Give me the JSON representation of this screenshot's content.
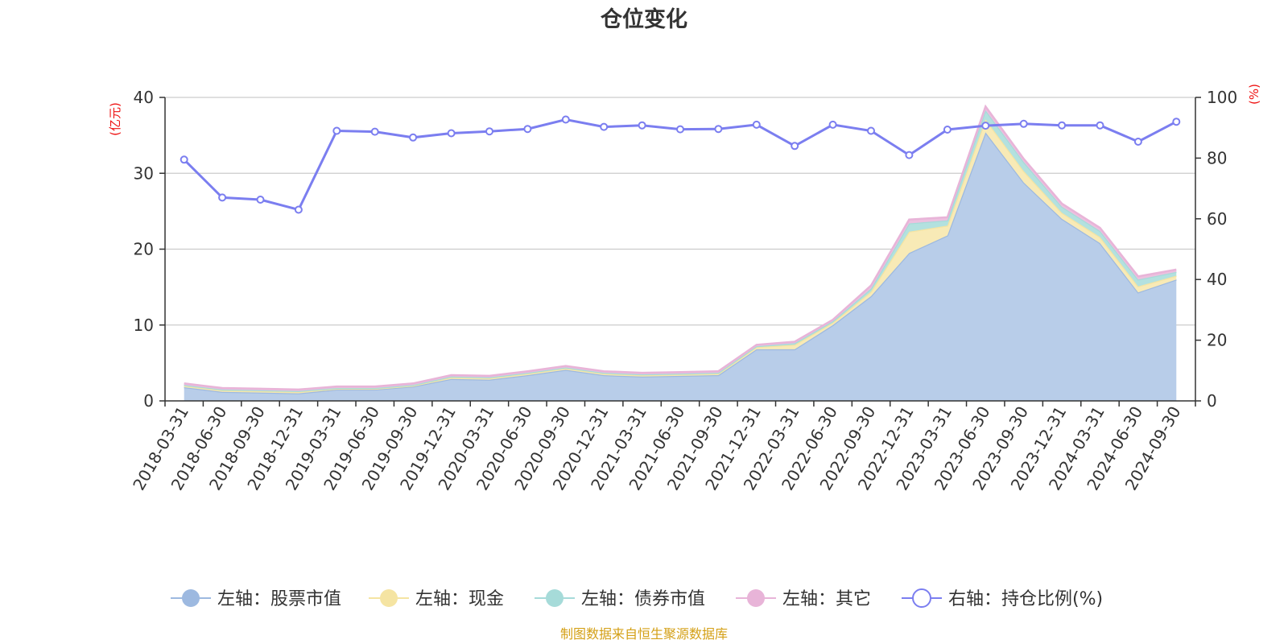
{
  "chart_data": {
    "type": "area",
    "title": "仓位变化",
    "left_unit": "(亿元)",
    "right_unit": "(%)",
    "source": "制图数据来自恒生聚源数据库",
    "categories": [
      "2018-03-31",
      "2018-06-30",
      "2018-09-30",
      "2018-12-31",
      "2019-03-31",
      "2019-06-30",
      "2019-09-30",
      "2019-12-31",
      "2020-03-31",
      "2020-06-30",
      "2020-09-30",
      "2020-12-31",
      "2021-03-31",
      "2021-06-30",
      "2021-09-30",
      "2021-12-31",
      "2022-03-31",
      "2022-06-30",
      "2022-09-30",
      "2022-12-31",
      "2023-03-31",
      "2023-06-30",
      "2023-09-30",
      "2023-12-31",
      "2024-03-31",
      "2024-06-30",
      "2024-09-30"
    ],
    "left_axis": {
      "min": 0,
      "max": 40,
      "ticks": [
        0,
        10,
        20,
        30,
        40
      ]
    },
    "right_axis": {
      "min": 0,
      "max": 100,
      "ticks": [
        0,
        20,
        40,
        60,
        80,
        100
      ]
    },
    "grid": true,
    "legend_position": "bottom",
    "stacked_series": [
      {
        "name": "左轴：股票市值",
        "color": "#9db9e0",
        "fill": "#b8cde9",
        "values": [
          1.8,
          1.2,
          1.1,
          1.0,
          1.5,
          1.5,
          1.9,
          2.9,
          2.8,
          3.4,
          4.1,
          3.4,
          3.2,
          3.3,
          3.4,
          6.8,
          6.8,
          10.0,
          13.8,
          19.5,
          21.8,
          35.4,
          28.8,
          24.0,
          20.8,
          14.3,
          16.0
        ]
      },
      {
        "name": "左轴：现金",
        "color": "#f5e4a2",
        "fill": "#f8eab6",
        "values": [
          0.2,
          0.2,
          0.2,
          0.2,
          0.1,
          0.1,
          0.1,
          0.2,
          0.2,
          0.2,
          0.2,
          0.2,
          0.2,
          0.2,
          0.2,
          0.3,
          0.6,
          0.3,
          0.6,
          2.8,
          1.3,
          1.7,
          1.5,
          0.8,
          0.8,
          0.8,
          0.5
        ]
      },
      {
        "name": "左轴：债券市值",
        "color": "#a6dbd9",
        "fill": "#b3e1df",
        "values": [
          0.1,
          0.1,
          0.1,
          0.1,
          0.1,
          0.1,
          0.1,
          0.1,
          0.1,
          0.1,
          0.1,
          0.1,
          0.1,
          0.1,
          0.1,
          0.1,
          0.2,
          0.2,
          0.4,
          1.1,
          0.7,
          1.2,
          1.2,
          0.8,
          0.8,
          0.9,
          0.5
        ]
      },
      {
        "name": "左轴：其它",
        "color": "#e8b4d8",
        "fill": "#ecc1df",
        "values": [
          0.2,
          0.2,
          0.2,
          0.2,
          0.2,
          0.2,
          0.2,
          0.2,
          0.2,
          0.2,
          0.2,
          0.2,
          0.2,
          0.2,
          0.2,
          0.2,
          0.2,
          0.2,
          0.4,
          0.5,
          0.4,
          0.5,
          0.4,
          0.4,
          0.4,
          0.4,
          0.3
        ]
      }
    ],
    "line_series": {
      "name": "右轴：持仓比例(%)",
      "color": "#7b7ef0",
      "values": [
        79.5,
        67.0,
        66.3,
        63.0,
        89.0,
        88.7,
        86.8,
        88.2,
        88.8,
        89.6,
        92.7,
        90.3,
        90.8,
        89.5,
        89.6,
        91.0,
        84.0,
        91.0,
        89.0,
        81.0,
        89.4,
        90.7,
        91.3,
        90.8,
        90.8,
        85.4,
        92.0
      ]
    }
  }
}
